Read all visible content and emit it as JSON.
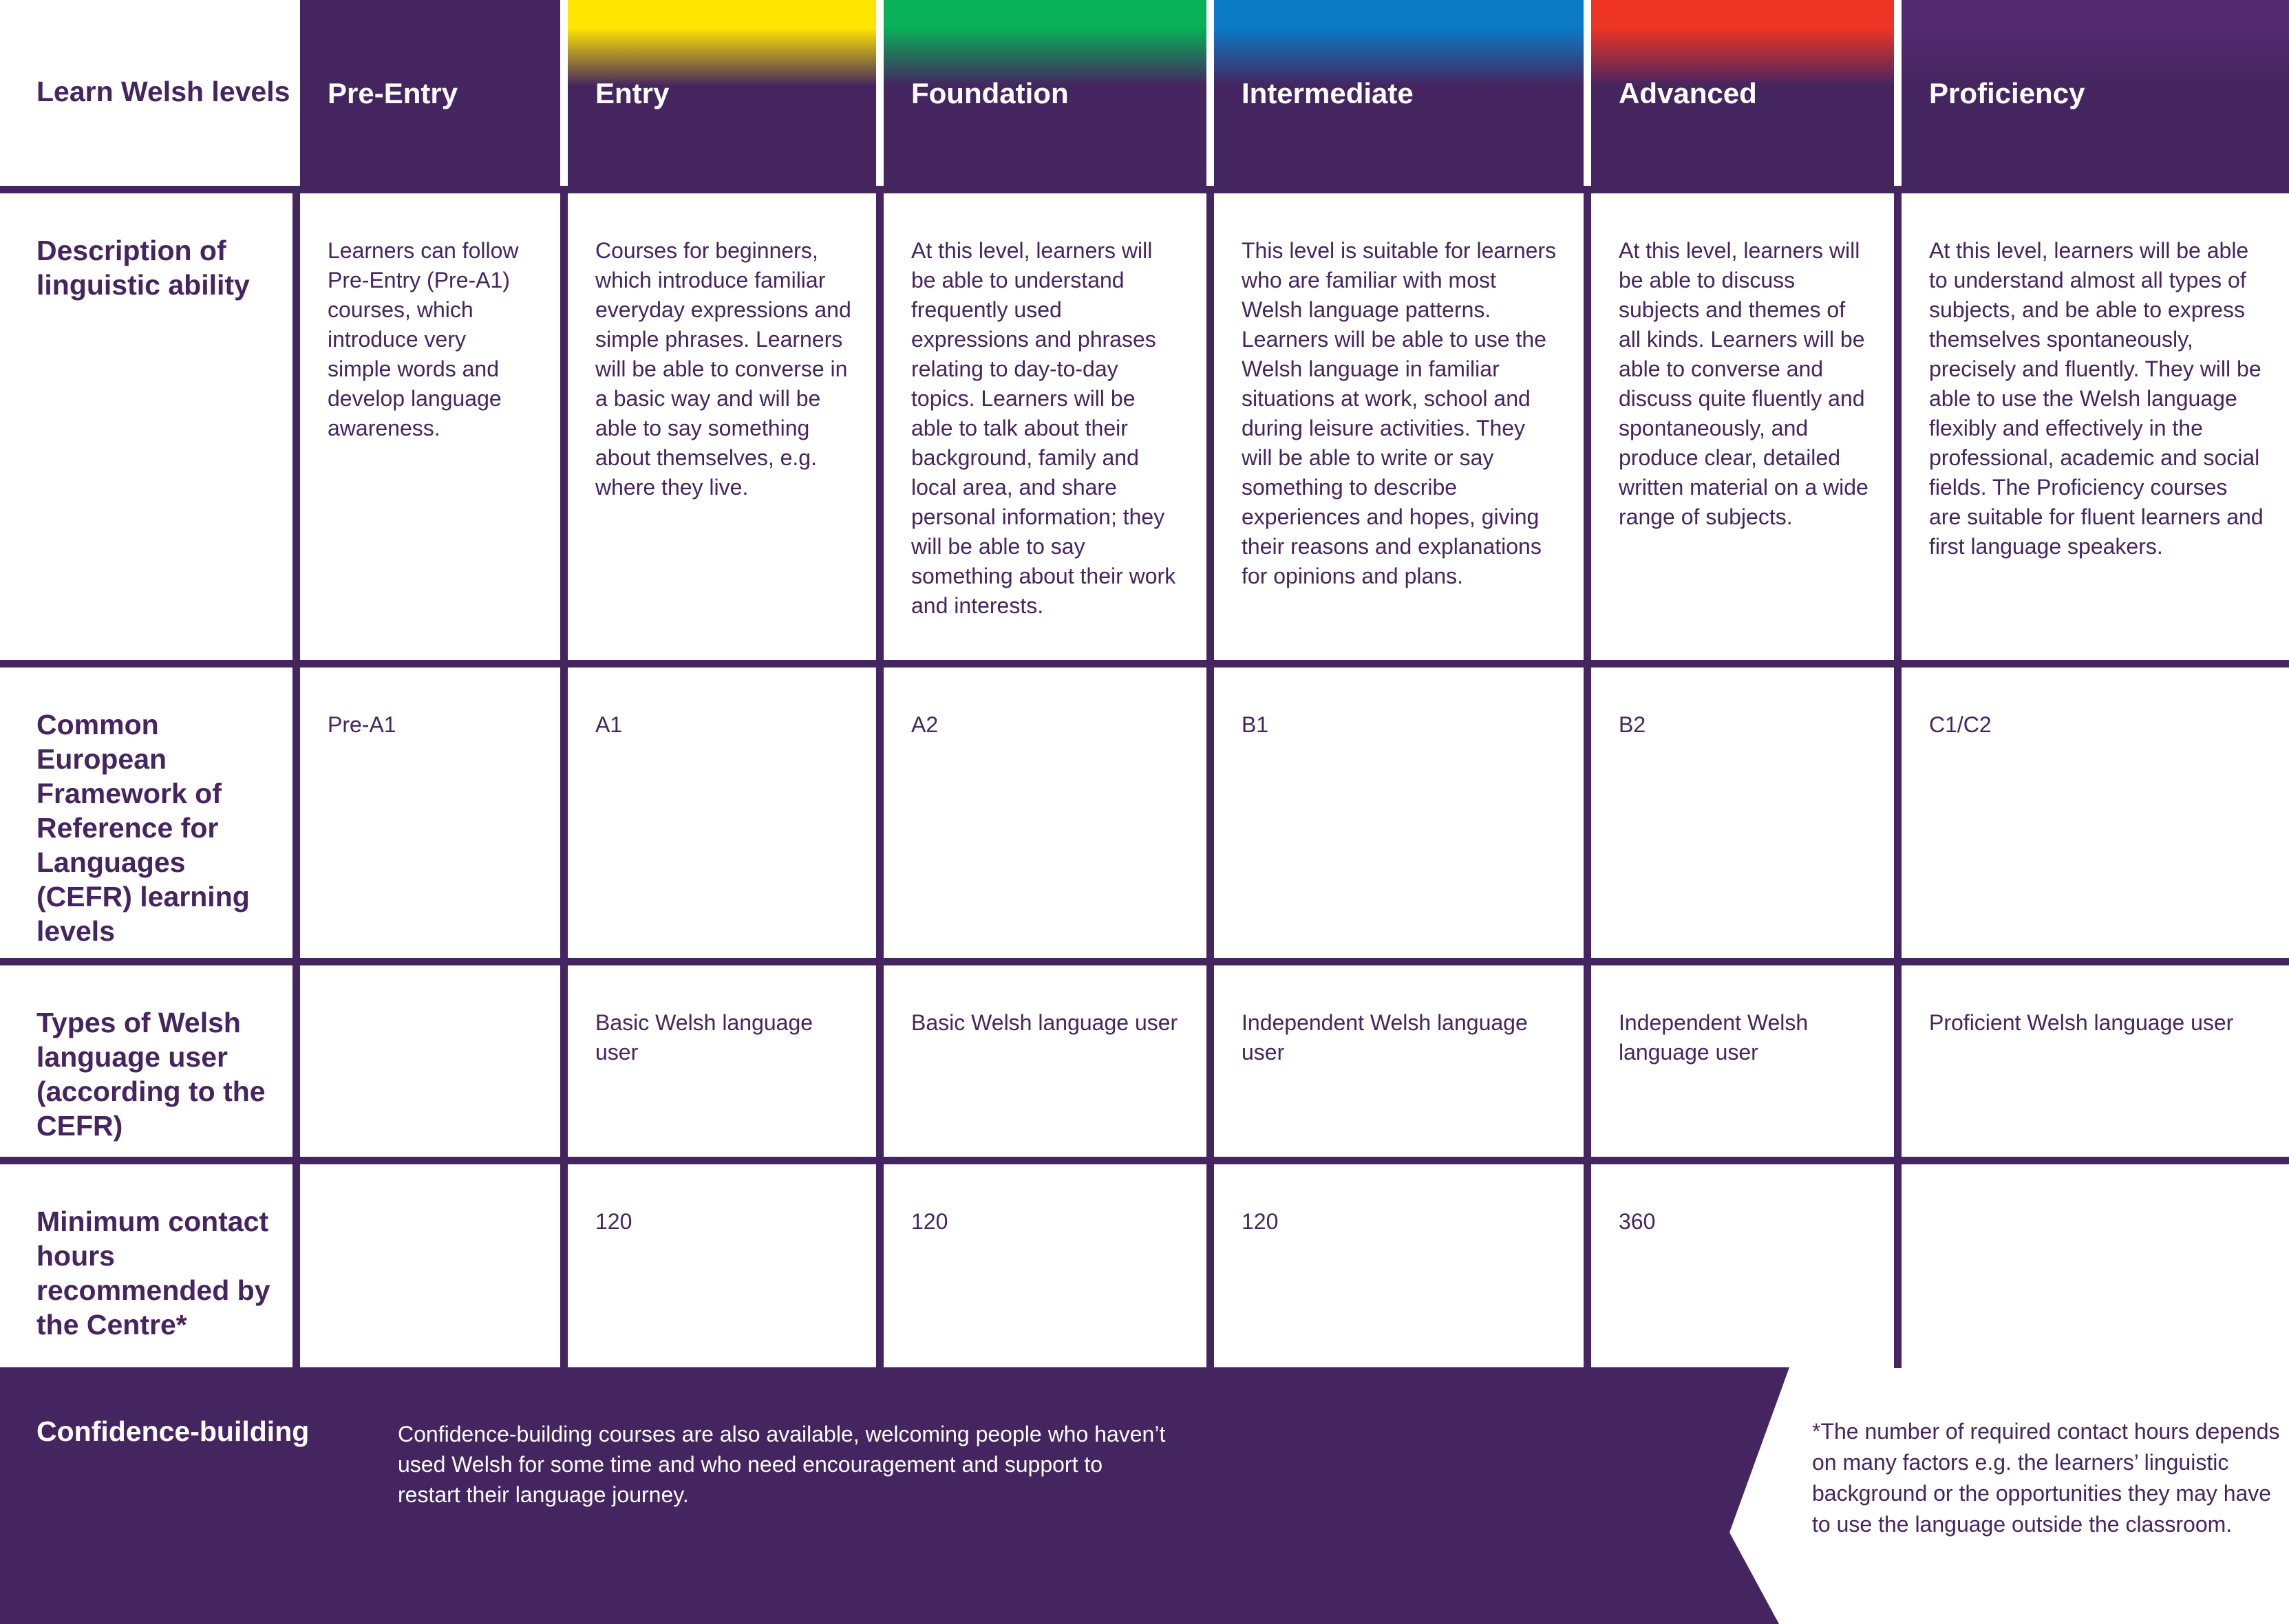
{
  "header_label": "Learn Welsh levels",
  "row_labels": {
    "description": "Description of linguistic ability",
    "cefr": "Common European Framework of Reference for Languages (CEFR) learning levels",
    "user_type": "Types of Welsh language user (according to the CEFR)",
    "hours": "Minimum contact hours recommended by the Centre*"
  },
  "levels": [
    {
      "name": "Pre-Entry",
      "color": "#45255f",
      "description": "Learners can follow Pre-Entry (Pre-A1) courses, which introduce very simple words and develop language awareness.",
      "cefr": "Pre-A1",
      "user_type": "",
      "hours": ""
    },
    {
      "name": "Entry",
      "color": "#ffe600",
      "description": "Courses for beginners, which introduce familiar everyday expressions and simple phrases. Learners will be able to converse in a basic way and will be able to say something about themselves, e.g. where they live.",
      "cefr": "A1",
      "user_type": "Basic Welsh language user",
      "hours": "120"
    },
    {
      "name": "Foundation",
      "color": "#08b058",
      "description": "At this level, learners will be able to understand frequently used expressions and phrases relating to day-to-day topics. Learners will be able to talk about their background, family and local area, and share personal information; they will be able to say something about their work and interests.",
      "cefr": "A2",
      "user_type": "Basic Welsh language user",
      "hours": "120"
    },
    {
      "name": "Intermediate",
      "color": "#0b7bc6",
      "description": "This level is suitable for learners who are familiar with most Welsh language patterns. Learners will be able to use the Welsh language in familiar situations at work, school and during leisure activities. They will be able to write or say something to describe experiences and hopes, giving their reasons and explanations for opinions and plans.",
      "cefr": "B1",
      "user_type": "Independent Welsh language user",
      "hours": "120"
    },
    {
      "name": "Advanced",
      "color": "#ee3524",
      "description": "At this level, learners will be able to discuss subjects and themes of all kinds. Learners will be able to converse and discuss quite fluently and spontaneously, and produce clear, detailed written material on a wide range of subjects.",
      "cefr": "B2",
      "user_type": "Independent Welsh language user",
      "hours": "360"
    },
    {
      "name": "Proficiency",
      "color": "#532a70",
      "description": "At this level, learners will be able to understand almost all types of subjects, and be able to express themselves spontaneously, precisely and fluently. They will be able to use the Welsh language flexibly and effectively in the professional, academic and social fields. The Proficiency courses are suitable for fluent learners and first language speakers.",
      "cefr": "C1/C2",
      "user_type": "Proficient Welsh language user",
      "hours": ""
    }
  ],
  "banner": {
    "title": "Confidence-building",
    "text": "Confidence-building courses are also available, welcoming people who haven’t used Welsh for some time and who need encouragement and support to restart their language journey."
  },
  "footnote": "*The number of required contact hours depends on many factors e.g. the learners’ linguistic background or the opportunities they may have to use the language outside the classroom.",
  "colors": {
    "purple": "#45255f",
    "text": "#45245f"
  }
}
